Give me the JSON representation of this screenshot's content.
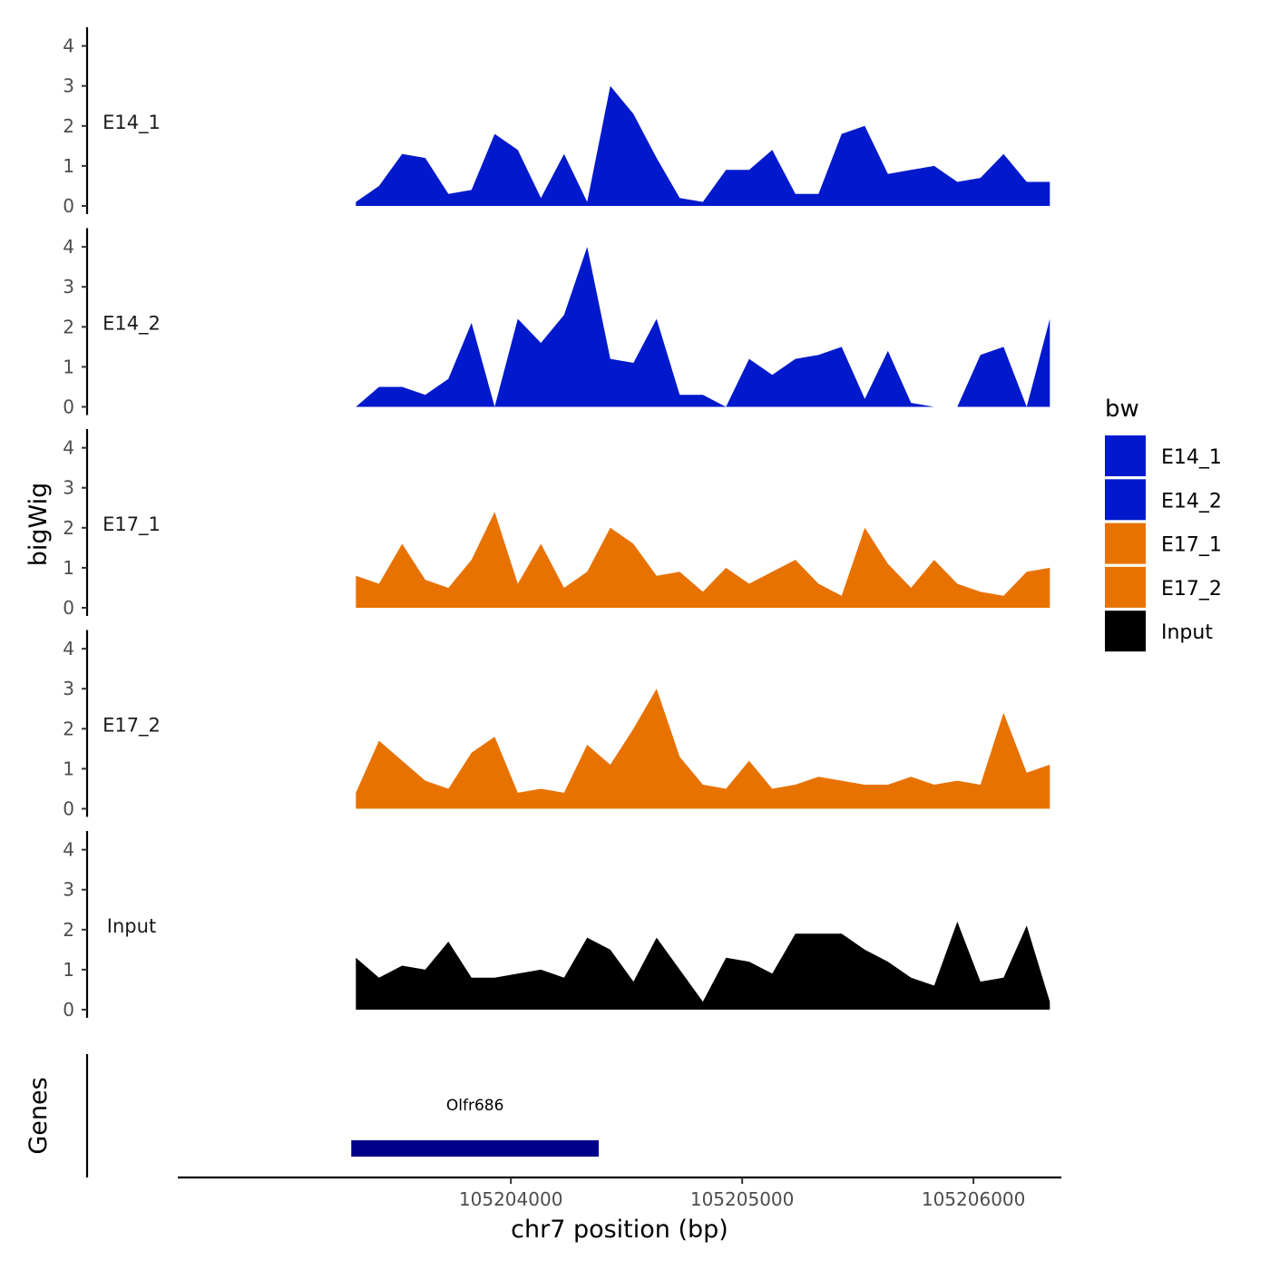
{
  "chart_data": {
    "type": "area",
    "ylabel": "bigWig",
    "xlabel": "chr7 position (bp)",
    "chromosome": "chr7",
    "xlim": [
      105202560,
      105206380
    ],
    "ylim": [
      0,
      4.4
    ],
    "yticks": [
      0,
      1,
      2,
      3,
      4
    ],
    "xticks": [
      105204000,
      105205000,
      105206000
    ],
    "x": [
      105203330,
      105203430,
      105203530,
      105203630,
      105203730,
      105203830,
      105203930,
      105204030,
      105204130,
      105204230,
      105204330,
      105204430,
      105204530,
      105204630,
      105204730,
      105204830,
      105204930,
      105205030,
      105205130,
      105205230,
      105205330,
      105205430,
      105205530,
      105205630,
      105205730,
      105205830,
      105205930,
      105206030,
      105206130,
      105206230,
      105206330
    ],
    "series": [
      {
        "name": "E14_1",
        "color": "#0019CC",
        "values": [
          0.1,
          0.5,
          1.3,
          1.2,
          0.3,
          0.4,
          1.8,
          1.4,
          0.2,
          1.3,
          0.1,
          3.0,
          2.3,
          1.2,
          0.2,
          0.1,
          0.9,
          0.9,
          1.4,
          0.3,
          0.3,
          1.8,
          2.0,
          0.8,
          0.9,
          1.0,
          0.6,
          0.7,
          1.3,
          0.6,
          0.6
        ]
      },
      {
        "name": "E14_2",
        "color": "#0019CC",
        "values": [
          0.0,
          0.5,
          0.5,
          0.3,
          0.7,
          2.1,
          0.0,
          2.2,
          1.6,
          2.3,
          4.0,
          1.2,
          1.1,
          2.2,
          0.3,
          0.3,
          0.0,
          1.2,
          0.8,
          1.2,
          1.3,
          1.5,
          0.2,
          1.4,
          0.1,
          0.0,
          0.0,
          1.3,
          1.5,
          0.0,
          2.2
        ]
      },
      {
        "name": "E17_1",
        "color": "#E87200",
        "values": [
          0.8,
          0.6,
          1.6,
          0.7,
          0.5,
          1.2,
          2.4,
          0.6,
          1.6,
          0.5,
          0.9,
          2.0,
          1.6,
          0.8,
          0.9,
          0.4,
          1.0,
          0.6,
          0.9,
          1.2,
          0.6,
          0.3,
          2.0,
          1.1,
          0.5,
          1.2,
          0.6,
          0.4,
          0.3,
          0.9,
          1.0
        ]
      },
      {
        "name": "E17_2",
        "color": "#E87200",
        "values": [
          0.4,
          1.7,
          1.2,
          0.7,
          0.5,
          1.4,
          1.8,
          0.4,
          0.5,
          0.4,
          1.6,
          1.1,
          2.0,
          3.0,
          1.3,
          0.6,
          0.5,
          1.2,
          0.5,
          0.6,
          0.8,
          0.7,
          0.6,
          0.6,
          0.8,
          0.6,
          0.7,
          0.6,
          2.4,
          0.9,
          1.1
        ]
      },
      {
        "name": "Input",
        "color": "#000000",
        "values": [
          1.3,
          0.8,
          1.1,
          1.0,
          1.7,
          0.8,
          0.8,
          0.9,
          1.0,
          0.8,
          1.8,
          1.5,
          0.7,
          1.8,
          1.0,
          0.2,
          1.3,
          1.2,
          0.9,
          1.9,
          1.9,
          1.9,
          1.5,
          1.2,
          0.8,
          0.6,
          2.2,
          0.7,
          0.8,
          2.1,
          0.2
        ]
      }
    ],
    "legend": {
      "title": "bw",
      "position": "right",
      "entries": [
        "E14_1",
        "E14_2",
        "E17_1",
        "E17_2",
        "Input"
      ]
    },
    "genes_track": {
      "label": "Genes",
      "genes": [
        {
          "name": "Olfr686",
          "start": 105203310,
          "end": 105204380,
          "color": "#00008B"
        }
      ]
    }
  }
}
